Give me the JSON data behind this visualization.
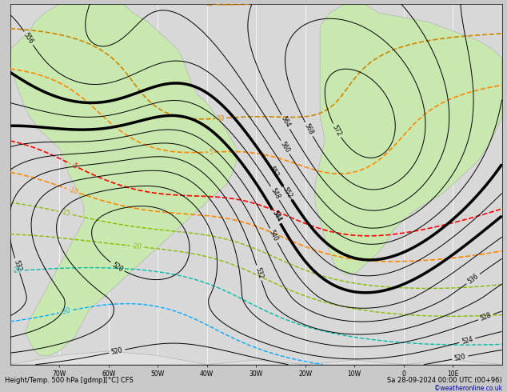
{
  "title_left": "Height/Temp. 500 hPa [gdmp][°C] CFS",
  "title_right": "Sa 28-09-2024 00:00 UTC (00+96)",
  "copyright": "©weatheronline.co.uk",
  "bg_color": "#c8c8c8",
  "land_color": "#c8e8b0",
  "ocean_color": "#d8d8d8",
  "grid_color": "#ffffff",
  "geop_color": "#000000",
  "figsize": [
    6.34,
    4.9
  ],
  "dpi": 100,
  "xlim": [
    -80,
    20
  ],
  "ylim": [
    -60,
    20
  ],
  "xticks": [
    -70,
    -60,
    -50,
    -40,
    -30,
    -20,
    -10,
    0,
    10
  ],
  "yticks": [],
  "xlabel_values": [
    "70W",
    "60W",
    "50W",
    "40W",
    "30W",
    "20W",
    "10W",
    "0",
    "10E"
  ],
  "temp_colors": {
    "-5": "#ff0000",
    "-10": "#ff8800",
    "5": "#ff8800",
    "10": "#cc8800",
    "15": "#cc8800",
    "-15": "#88bb00",
    "-20": "#88bb00",
    "-25": "#00bb88",
    "-30": "#00aaff",
    "-35": "#0055ff",
    "-40": "#0000bb"
  }
}
